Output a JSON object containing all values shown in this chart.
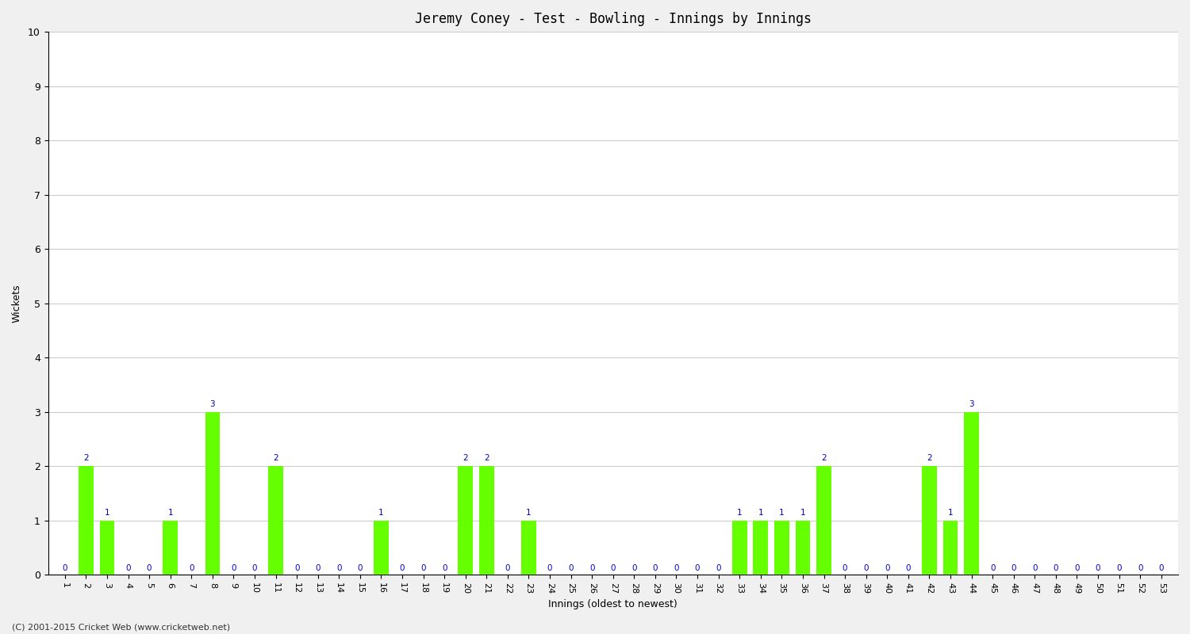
{
  "title": "Jeremy Coney - Test - Bowling - Innings by Innings",
  "xlabel": "Innings (oldest to newest)",
  "ylabel": "Wickets",
  "background_color": "#f0f0f0",
  "plot_bg_color": "#ffffff",
  "bar_color": "#66ff00",
  "label_color": "#0000cc",
  "ylim": [
    0,
    10
  ],
  "yticks": [
    0,
    1,
    2,
    3,
    4,
    5,
    6,
    7,
    8,
    9,
    10
  ],
  "innings": [
    1,
    2,
    3,
    4,
    5,
    6,
    7,
    8,
    9,
    10,
    11,
    12,
    13,
    14,
    15,
    16,
    17,
    18,
    19,
    20,
    21,
    22,
    23,
    24,
    25,
    26,
    27,
    28,
    29,
    30,
    31,
    32,
    33,
    34,
    35,
    36,
    37,
    38,
    39,
    40,
    41,
    42,
    43,
    44,
    45,
    46,
    47,
    48,
    49,
    50,
    51,
    52,
    53
  ],
  "wickets": [
    0,
    2,
    1,
    0,
    0,
    1,
    0,
    3,
    0,
    0,
    2,
    0,
    0,
    0,
    0,
    1,
    0,
    0,
    0,
    2,
    2,
    0,
    1,
    0,
    0,
    0,
    0,
    0,
    0,
    0,
    0,
    0,
    1,
    1,
    1,
    1,
    2,
    0,
    0,
    0,
    0,
    2,
    1,
    3,
    0,
    0,
    0,
    0,
    0,
    0,
    0,
    0,
    0
  ],
  "footer": "(C) 2001-2015 Cricket Web (www.cricketweb.net)"
}
